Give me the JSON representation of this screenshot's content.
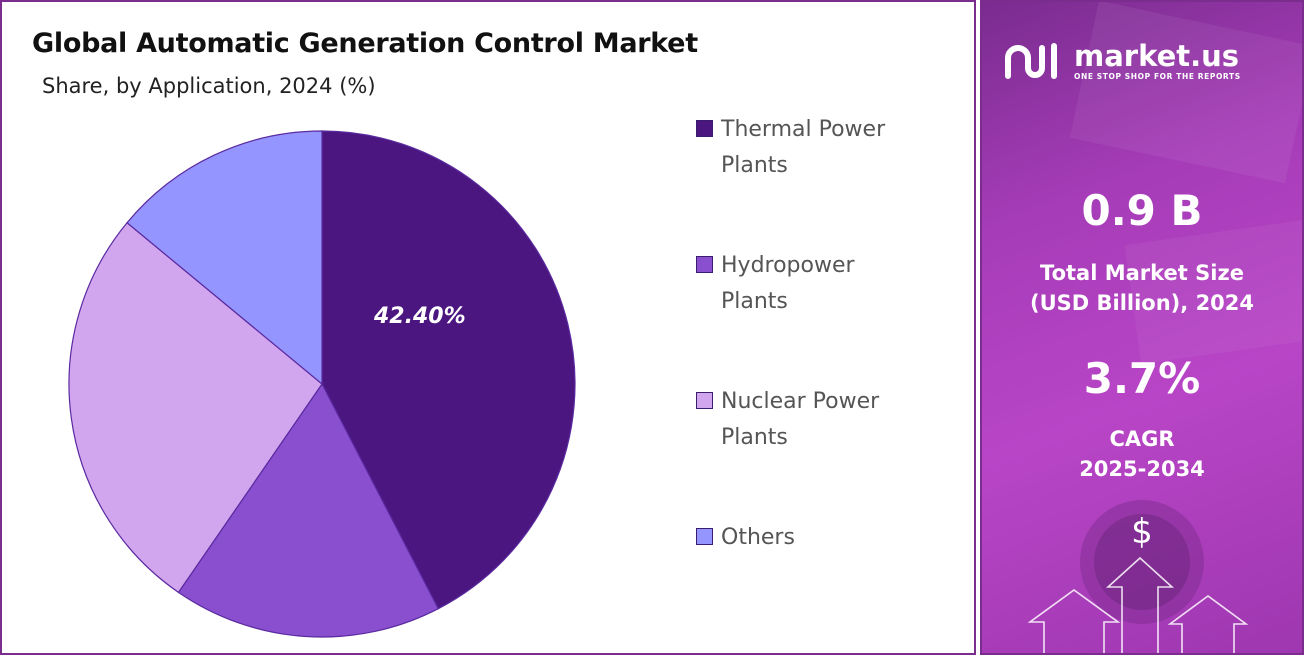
{
  "title": "Global Automatic Generation Control Market",
  "subtitle": "Share, by Application, 2024 (%)",
  "chart_data": {
    "type": "pie",
    "title": "Global Automatic Generation Control Market",
    "subtitle": "Share, by Application, 2024 (%)",
    "categories": [
      "Thermal Power Plants",
      "Hydropower Plants",
      "Nuclear Power Plants",
      "Others"
    ],
    "values": [
      42.4,
      17.2,
      26.4,
      14.0
    ],
    "data_labels": [
      "42.40%",
      "",
      "",
      ""
    ],
    "colors": [
      "#4b1680",
      "#8a4fcf",
      "#d2a6ee",
      "#9595ff"
    ],
    "legend_position": "right"
  },
  "legend": {
    "items": [
      {
        "line1": "Thermal Power",
        "line2": "Plants"
      },
      {
        "line1": "Hydropower",
        "line2": "Plants"
      },
      {
        "line1": "Nuclear Power",
        "line2": "Plants"
      },
      {
        "line1": "Others",
        "line2": ""
      }
    ]
  },
  "side": {
    "brand_name": "market.us",
    "brand_tagline": "ONE STOP SHOP FOR THE REPORTS",
    "market_size_value": "0.9 B",
    "market_size_label_1": "Total Market Size",
    "market_size_label_2": "(USD Billion), 2024",
    "cagr_value": "3.7%",
    "cagr_label_1": "CAGR",
    "cagr_label_2": "2025-2034",
    "currency_symbol": "$"
  }
}
